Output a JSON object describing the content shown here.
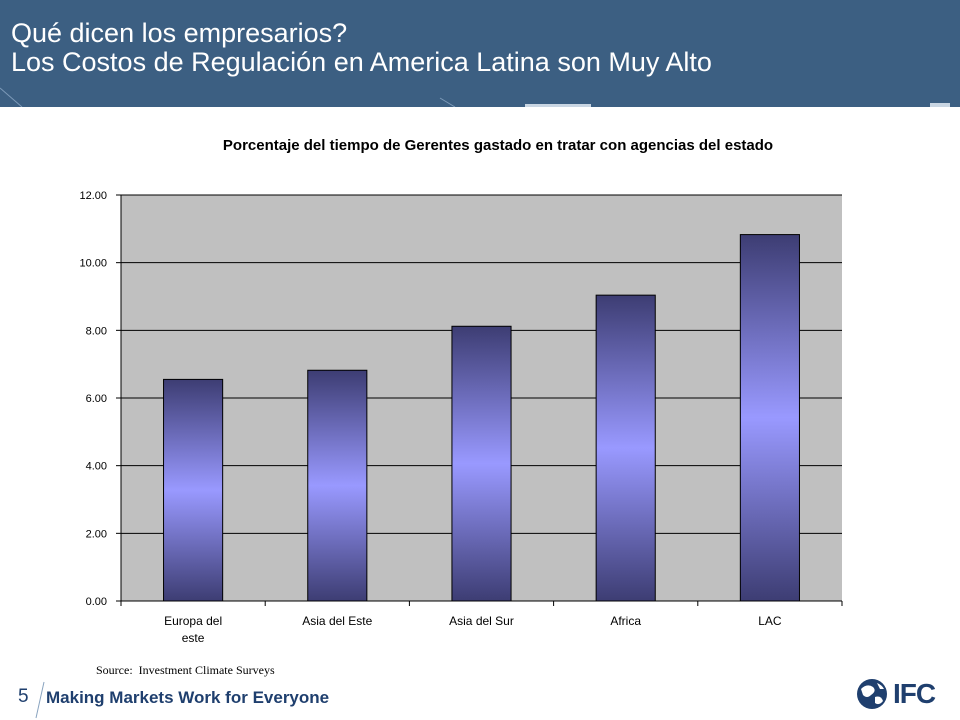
{
  "slide": {
    "title_line1": "Qué dicen los empresarios?",
    "title_line2": "Los Costos de Regulación en America Latina son Muy Alto",
    "page_number": "5",
    "footer_text": "Making Markets Work for Everyone",
    "logo_text": "IFC",
    "logo_icon": "globe-icon"
  },
  "colors": {
    "header_bg": "#3c5f82",
    "plot_bg": "#c0c0c0",
    "bar_edge": "#3d3d73",
    "bar_center": "#9999ff",
    "footer": "#1f3f6e"
  },
  "chart_data": {
    "type": "bar",
    "title": "Porcentaje del tiempo de Gerentes gastado en tratar con agencias del estado",
    "categories": [
      "Europa del\neste",
      "Asia del Este",
      "Asia del Sur",
      "Africa",
      "LAC"
    ],
    "values": [
      6.55,
      6.82,
      8.12,
      9.04,
      10.83
    ],
    "ylim": [
      0,
      12
    ],
    "yticks": [
      "0.00",
      "2.00",
      "4.00",
      "6.00",
      "8.00",
      "10.00",
      "12.00"
    ],
    "xlabel": "",
    "ylabel": "",
    "grid": true,
    "legend": false,
    "source": "Source:  Investment Climate Surveys"
  }
}
